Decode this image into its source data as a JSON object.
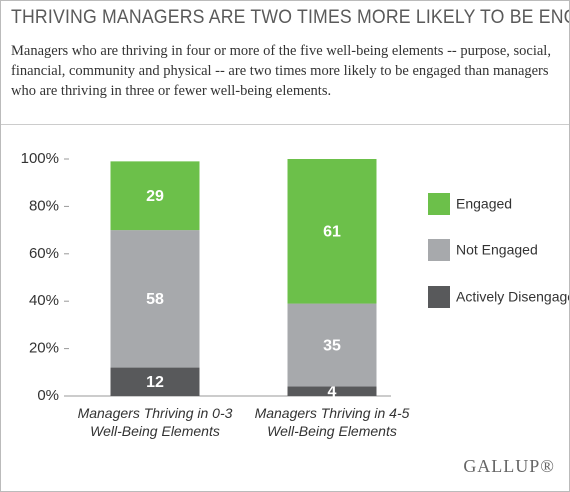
{
  "chart_data": {
    "type": "stacked_bar",
    "title": "THRIVING MANAGERS ARE TWO TIMES MORE LIKELY TO BE ENGAGED",
    "subtitle": "Managers who are thriving in four or more of the five well-being elements -- purpose, social, financial, community and physical -- are two times more likely to be engaged than managers who are thriving in three or fewer well-being elements.",
    "categories": [
      "Managers Thriving in 0-3 Well-Being Elements",
      "Managers Thriving in 4-5 Well-Being Elements"
    ],
    "series": [
      {
        "name": "Actively Disengaged",
        "color": "#58595b",
        "values": [
          12,
          4
        ]
      },
      {
        "name": "Not Engaged",
        "color": "#a7a9ac",
        "values": [
          58,
          35
        ]
      },
      {
        "name": "Engaged",
        "color": "#6cc04a",
        "values": [
          29,
          61
        ]
      }
    ],
    "ylim": [
      0,
      100
    ],
    "yticks": [
      {
        "value": 0,
        "label": "0%"
      },
      {
        "value": 20,
        "label": "20%"
      },
      {
        "value": 40,
        "label": "40%"
      },
      {
        "value": 60,
        "label": "60%"
      },
      {
        "value": 80,
        "label": "80%"
      },
      {
        "value": 100,
        "label": "100%"
      }
    ],
    "logo": "GALLUP®"
  }
}
